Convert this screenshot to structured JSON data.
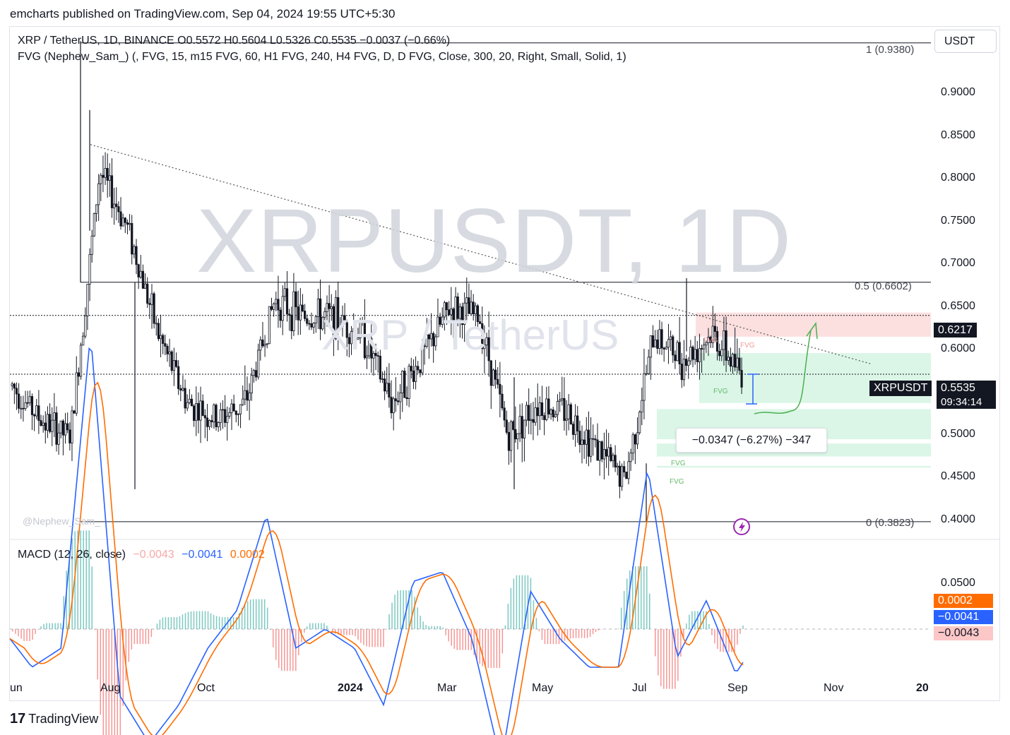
{
  "header": {
    "publish_line": "emcharts published on TradingView.com, Sep 04, 2024 19:55 UTC+5:30"
  },
  "legend": {
    "symbol_line": "XRP / TetherUS, 1D, BINANCE  O0.5572  H0.5604  L0.5326  C0.5535  −0.0037 (−0.66%)",
    "indicator_line": "FVG (Nephew_Sam_) (, FVG, 15, m15 FVG, 60, H1 FVG, 240, H4 FVG, D, D FVG, Close, 300, 20, Right, Small, Solid, 1)"
  },
  "currency_button": "USDT",
  "watermark": {
    "big": "XRPUSDT, 1D",
    "small": "XRP / TetherUS"
  },
  "credit": "@Nephew_Sam_",
  "fib_levels": [
    {
      "label": "1 (0.9380)",
      "price": 0.938
    },
    {
      "label": "0.5 (0.6602)",
      "price": 0.6602
    },
    {
      "label": "0 (0.3823)",
      "price": 0.3823
    }
  ],
  "price_tags": {
    "level": "0.6217",
    "symbol": "XRPUSDT",
    "last": "0.5535",
    "countdown": "09:34:14"
  },
  "measurement": "−0.0347 (−6.27%) −347",
  "fvg_label": "FVG",
  "macd": {
    "title": "MACD (12, 26, close)",
    "hist": "−0.0043",
    "macd": "−0.0041",
    "signal": "0.0002",
    "tag_signal": "0.0002",
    "tag_macd": "−0.0041",
    "tag_hist": "−0.0043",
    "axis_label": "0.0500"
  },
  "brand": {
    "mark": "17",
    "name": "TradingView"
  },
  "colors": {
    "up": "#131722",
    "macd_line": "#2962ff",
    "signal_line": "#ff6d00",
    "hist_pos": "#26a69a",
    "hist_neg": "#ef5350",
    "fvg_bull": "#d5f5e3",
    "fvg_bear": "#fbdada",
    "projection": "#4caf50"
  },
  "chart_data": {
    "type": "candlestick",
    "interval": "1D",
    "price_ticks": [
      "0.9000",
      "0.8500",
      "0.8000",
      "0.7500",
      "0.7000",
      "0.6500",
      "0.6000",
      "0.5000",
      "0.4500",
      "0.4000"
    ],
    "x_ticks": [
      "un",
      "Aug",
      "Oct",
      "2024",
      "Mar",
      "May",
      "Jul",
      "Sep",
      "Nov",
      "20"
    ],
    "ylim": [
      0.365,
      0.955
    ],
    "key_path": [
      {
        "t": 0,
        "p": 0.54
      },
      {
        "t": 1,
        "p": 0.5
      },
      {
        "t": 2,
        "p": 0.48
      },
      {
        "t": 3,
        "p": 0.79
      },
      {
        "t": 4,
        "p": 0.72
      },
      {
        "t": 5,
        "p": 0.6
      },
      {
        "t": 6,
        "p": 0.52
      },
      {
        "t": 7,
        "p": 0.5
      },
      {
        "t": 8,
        "p": 0.52
      },
      {
        "t": 9,
        "p": 0.64
      },
      {
        "t": 10,
        "p": 0.62
      },
      {
        "t": 11,
        "p": 0.62
      },
      {
        "t": 12,
        "p": 0.6
      },
      {
        "t": 13,
        "p": 0.52
      },
      {
        "t": 14,
        "p": 0.57
      },
      {
        "t": 15,
        "p": 0.63
      },
      {
        "t": 16,
        "p": 0.62
      },
      {
        "t": 17,
        "p": 0.48
      },
      {
        "t": 18,
        "p": 0.52
      },
      {
        "t": 19,
        "p": 0.51
      },
      {
        "t": 20,
        "p": 0.47
      },
      {
        "t": 21,
        "p": 0.43
      },
      {
        "t": 22,
        "p": 0.6
      },
      {
        "t": 23,
        "p": 0.57
      },
      {
        "t": 24,
        "p": 0.6
      },
      {
        "t": 25,
        "p": 0.5535
      }
    ],
    "last_price": 0.5535,
    "annotations": {
      "trendline": "descending dotted",
      "projection": "bullish path toward 0.63",
      "fvg_zones": [
        {
          "kind": "bearish",
          "from": 0.597,
          "to": 0.625
        },
        {
          "kind": "bullish",
          "from": 0.52,
          "to": 0.578
        },
        {
          "kind": "bullish",
          "from": 0.478,
          "to": 0.513
        },
        {
          "kind": "bullish",
          "from": 0.458,
          "to": 0.473
        },
        {
          "kind": "bullish",
          "from": 0.445,
          "to": 0.447
        }
      ]
    }
  }
}
